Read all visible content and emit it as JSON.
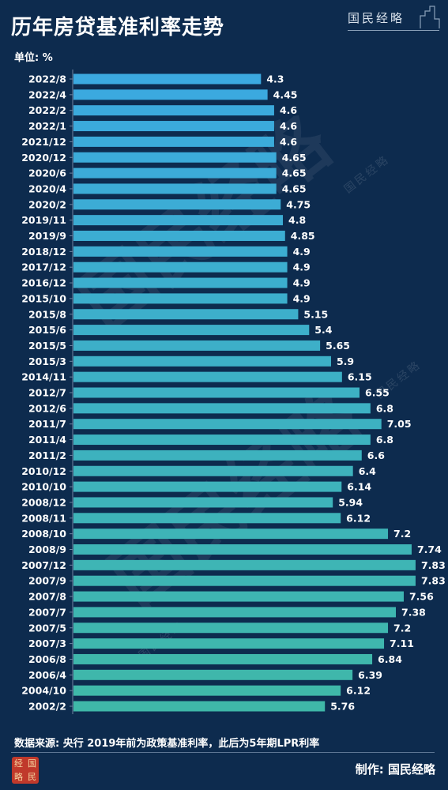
{
  "header": {
    "title": "历年房贷基准利率走势",
    "brand": "国民经略",
    "unit": "单位: %"
  },
  "footer": {
    "source": "数据来源: 央行 2019年前为政策基准利率，此后为5年期LPR利率",
    "maker_label": "制作:",
    "maker_name": "国民经略",
    "seal_chars": [
      "经",
      "国",
      "略",
      "民"
    ]
  },
  "watermark": {
    "text": "国民经略"
  },
  "colors": {
    "background": "#0d2b4e",
    "bar_top": "#3ba9e0",
    "bar_bottom": "#3fb8a8",
    "label": "#ffffff"
  },
  "chart_data": {
    "type": "bar",
    "orientation": "horizontal",
    "categories": [
      "2022/8",
      "2022/4",
      "2022/2",
      "2022/1",
      "2021/12",
      "2020/12",
      "2020/6",
      "2020/4",
      "2020/2",
      "2019/11",
      "2019/9",
      "2018/12",
      "2017/12",
      "2016/12",
      "2015/10",
      "2015/8",
      "2015/6",
      "2015/5",
      "2015/3",
      "2014/11",
      "2012/7",
      "2012/6",
      "2011/7",
      "2011/4",
      "2011/2",
      "2010/12",
      "2010/10",
      "2008/12",
      "2008/11",
      "2008/10",
      "2008/9",
      "2007/12",
      "2007/9",
      "2007/8",
      "2007/7",
      "2007/5",
      "2007/3",
      "2006/8",
      "2006/4",
      "2004/10",
      "2002/2"
    ],
    "values": [
      4.3,
      4.45,
      4.6,
      4.6,
      4.6,
      4.65,
      4.65,
      4.65,
      4.75,
      4.8,
      4.85,
      4.9,
      4.9,
      4.9,
      4.9,
      5.15,
      5.4,
      5.65,
      5.9,
      6.15,
      6.55,
      6.8,
      7.05,
      6.8,
      6.6,
      6.4,
      6.14,
      5.94,
      6.12,
      7.2,
      7.74,
      7.83,
      7.83,
      7.56,
      7.38,
      7.2,
      7.11,
      6.84,
      6.39,
      6.12,
      5.76
    ],
    "value_labels": [
      "4.3",
      "4.45",
      "4.6",
      "4.6",
      "4.6",
      "4.65",
      "4.65",
      "4.65",
      "4.75",
      "4.8",
      "4.85",
      "4.9",
      "4.9",
      "4.9",
      "4.9",
      "5.15",
      "5.4",
      "5.65",
      "5.9",
      "6.15",
      "6.55",
      "6.8",
      "7.05",
      "6.8",
      "6.6",
      "6.4",
      "6.14",
      "5.94",
      "6.12",
      "7.2",
      "7.74",
      "7.83",
      "7.83",
      "7.56",
      "7.38",
      "7.2",
      "7.11",
      "6.84",
      "6.39",
      "6.12",
      "5.76"
    ],
    "title": "历年房贷基准利率走势",
    "xlim": [
      0,
      8.3
    ],
    "grid": false,
    "legend": "none"
  }
}
